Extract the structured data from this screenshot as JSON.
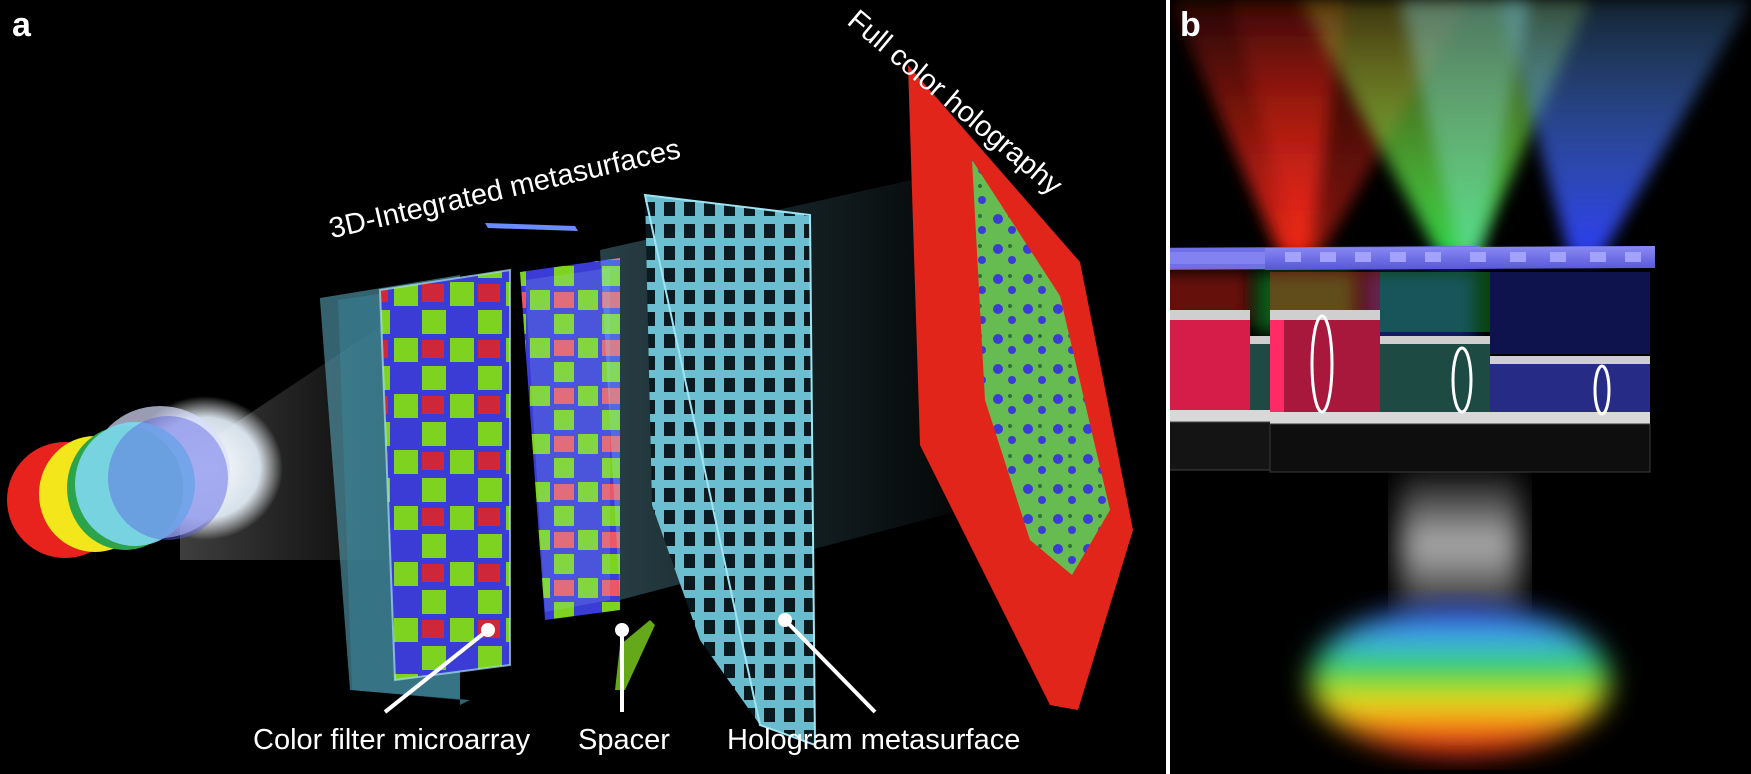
{
  "panel_a": {
    "label": "a",
    "title_integrated": "3D-Integrated metasurfaces",
    "title_hologram": "Full color holography",
    "callouts": {
      "color_filter": "Color filter microarray",
      "spacer": "Spacer",
      "hologram": "Hologram metasurface"
    }
  },
  "panel_b": {
    "label": "b"
  },
  "colors": {
    "background": "#000000",
    "red": "#e8231e",
    "green": "#7ed321",
    "blue": "#3b3bd6",
    "glass": "#7fd4e8"
  }
}
